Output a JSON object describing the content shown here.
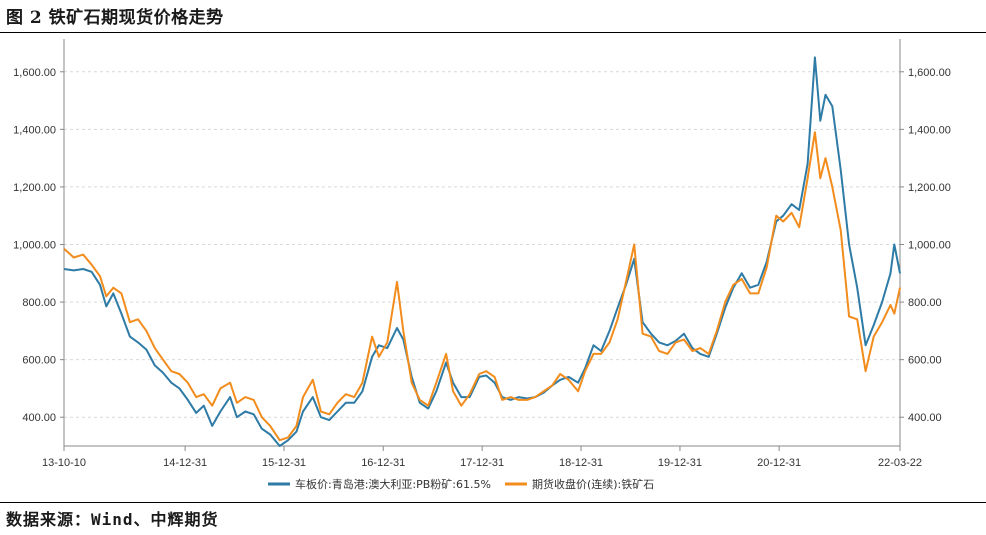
{
  "title": "图 2 铁矿石期现货价格走势",
  "source": "数据来源：Wind、中辉期货",
  "chart_data": {
    "type": "line",
    "title": "",
    "ylim": [
      300,
      1700
    ],
    "y_ticks": [
      400,
      600,
      800,
      1000,
      1200,
      1400,
      1600
    ],
    "y_tick_labels": [
      "400.00",
      "600.00",
      "800.00",
      "1,000.00",
      "1,200.00",
      "1,400.00",
      "1,600.00"
    ],
    "y2_tick_labels": [
      "400.00",
      "600.00",
      "800.00",
      "1,000.00",
      "1,200.00",
      "1,400.00",
      "1,600.00"
    ],
    "x_range": [
      "2013-10-10",
      "2022-03-22"
    ],
    "x_ticks": [
      "2013-10-10",
      "2014-12-31",
      "2015-12-31",
      "2016-12-31",
      "2017-12-31",
      "2018-12-31",
      "2019-12-31",
      "2020-12-31",
      "2022-03-22"
    ],
    "x_tick_labels": [
      "13-10-10",
      "14-12-31",
      "15-12-31",
      "16-12-31",
      "17-12-31",
      "18-12-31",
      "19-12-31",
      "20-12-31",
      "22-03-22"
    ],
    "grid": "horizontal dashed",
    "legend_position": "bottom",
    "series": [
      {
        "name": "车板价:青岛港:澳大利亚:PB粉矿:61.5%",
        "color": "#2e7ba6",
        "axis": "left",
        "points": [
          [
            "2013-10-10",
            915
          ],
          [
            "2013-11-15",
            910
          ],
          [
            "2013-12-20",
            915
          ],
          [
            "2014-01-20",
            905
          ],
          [
            "2014-02-20",
            860
          ],
          [
            "2014-03-15",
            785
          ],
          [
            "2014-04-10",
            830
          ],
          [
            "2014-05-10",
            760
          ],
          [
            "2014-06-10",
            680
          ],
          [
            "2014-07-10",
            660
          ],
          [
            "2014-08-10",
            635
          ],
          [
            "2014-09-10",
            580
          ],
          [
            "2014-10-10",
            555
          ],
          [
            "2014-11-10",
            520
          ],
          [
            "2014-12-10",
            500
          ],
          [
            "2015-01-10",
            460
          ],
          [
            "2015-02-10",
            415
          ],
          [
            "2015-03-10",
            440
          ],
          [
            "2015-04-10",
            370
          ],
          [
            "2015-05-10",
            420
          ],
          [
            "2015-06-15",
            470
          ],
          [
            "2015-07-10",
            400
          ],
          [
            "2015-08-10",
            420
          ],
          [
            "2015-09-10",
            410
          ],
          [
            "2015-10-10",
            360
          ],
          [
            "2015-11-10",
            340
          ],
          [
            "2015-12-15",
            300
          ],
          [
            "2016-01-15",
            320
          ],
          [
            "2016-02-15",
            350
          ],
          [
            "2016-03-10",
            420
          ],
          [
            "2016-04-15",
            470
          ],
          [
            "2016-05-15",
            400
          ],
          [
            "2016-06-15",
            390
          ],
          [
            "2016-07-15",
            420
          ],
          [
            "2016-08-15",
            450
          ],
          [
            "2016-09-15",
            450
          ],
          [
            "2016-10-15",
            490
          ],
          [
            "2016-11-20",
            610
          ],
          [
            "2016-12-15",
            650
          ],
          [
            "2017-01-15",
            640
          ],
          [
            "2017-02-20",
            710
          ],
          [
            "2017-03-15",
            670
          ],
          [
            "2017-04-15",
            540
          ],
          [
            "2017-05-15",
            450
          ],
          [
            "2017-06-15",
            430
          ],
          [
            "2017-07-15",
            490
          ],
          [
            "2017-08-20",
            590
          ],
          [
            "2017-09-15",
            520
          ],
          [
            "2017-10-15",
            470
          ],
          [
            "2017-11-15",
            470
          ],
          [
            "2017-12-20",
            540
          ],
          [
            "2018-01-15",
            545
          ],
          [
            "2018-02-15",
            520
          ],
          [
            "2018-03-15",
            470
          ],
          [
            "2018-04-15",
            460
          ],
          [
            "2018-05-15",
            470
          ],
          [
            "2018-06-15",
            465
          ],
          [
            "2018-07-15",
            470
          ],
          [
            "2018-08-15",
            485
          ],
          [
            "2018-09-15",
            510
          ],
          [
            "2018-10-15",
            530
          ],
          [
            "2018-11-15",
            540
          ],
          [
            "2018-12-20",
            520
          ],
          [
            "2019-01-15",
            570
          ],
          [
            "2019-02-15",
            650
          ],
          [
            "2019-03-15",
            630
          ],
          [
            "2019-04-15",
            700
          ],
          [
            "2019-05-15",
            780
          ],
          [
            "2019-06-15",
            860
          ],
          [
            "2019-07-15",
            950
          ],
          [
            "2019-08-15",
            730
          ],
          [
            "2019-09-15",
            690
          ],
          [
            "2019-10-15",
            660
          ],
          [
            "2019-11-15",
            650
          ],
          [
            "2019-12-15",
            665
          ],
          [
            "2020-01-15",
            690
          ],
          [
            "2020-02-15",
            640
          ],
          [
            "2020-03-15",
            620
          ],
          [
            "2020-04-15",
            610
          ],
          [
            "2020-05-15",
            690
          ],
          [
            "2020-06-15",
            780
          ],
          [
            "2020-07-15",
            850
          ],
          [
            "2020-08-15",
            900
          ],
          [
            "2020-09-15",
            850
          ],
          [
            "2020-10-15",
            860
          ],
          [
            "2020-11-15",
            940
          ],
          [
            "2020-12-20",
            1080
          ],
          [
            "2021-01-15",
            1100
          ],
          [
            "2021-02-15",
            1140
          ],
          [
            "2021-03-15",
            1120
          ],
          [
            "2021-04-15",
            1280
          ],
          [
            "2021-05-12",
            1650
          ],
          [
            "2021-06-01",
            1430
          ],
          [
            "2021-06-20",
            1520
          ],
          [
            "2021-07-15",
            1480
          ],
          [
            "2021-08-15",
            1260
          ],
          [
            "2021-09-15",
            1000
          ],
          [
            "2021-10-15",
            850
          ],
          [
            "2021-11-15",
            650
          ],
          [
            "2021-12-15",
            720
          ],
          [
            "2022-01-15",
            800
          ],
          [
            "2022-02-15",
            900
          ],
          [
            "2022-03-01",
            1000
          ],
          [
            "2022-03-22",
            900
          ]
        ]
      },
      {
        "name": "期货收盘价(连续):铁矿石",
        "color": "#f28c1c",
        "axis": "right",
        "points": [
          [
            "2013-10-10",
            985
          ],
          [
            "2013-11-15",
            955
          ],
          [
            "2013-12-20",
            965
          ],
          [
            "2014-01-20",
            930
          ],
          [
            "2014-02-20",
            890
          ],
          [
            "2014-03-15",
            820
          ],
          [
            "2014-04-10",
            850
          ],
          [
            "2014-05-10",
            830
          ],
          [
            "2014-06-10",
            730
          ],
          [
            "2014-07-10",
            740
          ],
          [
            "2014-08-10",
            700
          ],
          [
            "2014-09-10",
            640
          ],
          [
            "2014-10-10",
            600
          ],
          [
            "2014-11-10",
            560
          ],
          [
            "2014-12-10",
            550
          ],
          [
            "2015-01-10",
            520
          ],
          [
            "2015-02-10",
            470
          ],
          [
            "2015-03-10",
            480
          ],
          [
            "2015-04-10",
            440
          ],
          [
            "2015-05-10",
            500
          ],
          [
            "2015-06-15",
            520
          ],
          [
            "2015-07-10",
            450
          ],
          [
            "2015-08-10",
            470
          ],
          [
            "2015-09-10",
            460
          ],
          [
            "2015-10-10",
            400
          ],
          [
            "2015-11-10",
            370
          ],
          [
            "2015-12-15",
            320
          ],
          [
            "2016-01-15",
            330
          ],
          [
            "2016-02-15",
            370
          ],
          [
            "2016-03-10",
            470
          ],
          [
            "2016-04-15",
            530
          ],
          [
            "2016-05-15",
            420
          ],
          [
            "2016-06-15",
            410
          ],
          [
            "2016-07-15",
            450
          ],
          [
            "2016-08-15",
            480
          ],
          [
            "2016-09-15",
            470
          ],
          [
            "2016-10-15",
            520
          ],
          [
            "2016-11-20",
            680
          ],
          [
            "2016-12-15",
            610
          ],
          [
            "2017-01-15",
            660
          ],
          [
            "2017-02-20",
            870
          ],
          [
            "2017-03-15",
            700
          ],
          [
            "2017-04-15",
            520
          ],
          [
            "2017-05-15",
            460
          ],
          [
            "2017-06-15",
            440
          ],
          [
            "2017-07-15",
            520
          ],
          [
            "2017-08-20",
            620
          ],
          [
            "2017-09-15",
            490
          ],
          [
            "2017-10-15",
            440
          ],
          [
            "2017-11-15",
            480
          ],
          [
            "2017-12-20",
            550
          ],
          [
            "2018-01-15",
            560
          ],
          [
            "2018-02-15",
            540
          ],
          [
            "2018-03-15",
            460
          ],
          [
            "2018-04-15",
            470
          ],
          [
            "2018-05-15",
            460
          ],
          [
            "2018-06-15",
            460
          ],
          [
            "2018-07-15",
            470
          ],
          [
            "2018-08-15",
            490
          ],
          [
            "2018-09-15",
            510
          ],
          [
            "2018-10-15",
            550
          ],
          [
            "2018-11-15",
            530
          ],
          [
            "2018-12-20",
            490
          ],
          [
            "2019-01-15",
            560
          ],
          [
            "2019-02-15",
            620
          ],
          [
            "2019-03-15",
            620
          ],
          [
            "2019-04-15",
            660
          ],
          [
            "2019-05-15",
            740
          ],
          [
            "2019-06-15",
            870
          ],
          [
            "2019-07-15",
            1000
          ],
          [
            "2019-08-15",
            690
          ],
          [
            "2019-09-15",
            680
          ],
          [
            "2019-10-15",
            630
          ],
          [
            "2019-11-15",
            620
          ],
          [
            "2019-12-15",
            660
          ],
          [
            "2020-01-15",
            670
          ],
          [
            "2020-02-15",
            630
          ],
          [
            "2020-03-15",
            640
          ],
          [
            "2020-04-15",
            620
          ],
          [
            "2020-05-15",
            700
          ],
          [
            "2020-06-15",
            800
          ],
          [
            "2020-07-15",
            860
          ],
          [
            "2020-08-15",
            880
          ],
          [
            "2020-09-15",
            830
          ],
          [
            "2020-10-15",
            830
          ],
          [
            "2020-11-15",
            920
          ],
          [
            "2020-12-20",
            1100
          ],
          [
            "2021-01-15",
            1080
          ],
          [
            "2021-02-15",
            1110
          ],
          [
            "2021-03-15",
            1060
          ],
          [
            "2021-04-15",
            1230
          ],
          [
            "2021-05-12",
            1390
          ],
          [
            "2021-06-01",
            1230
          ],
          [
            "2021-06-20",
            1300
          ],
          [
            "2021-07-15",
            1200
          ],
          [
            "2021-08-15",
            1050
          ],
          [
            "2021-09-15",
            750
          ],
          [
            "2021-10-15",
            740
          ],
          [
            "2021-11-15",
            560
          ],
          [
            "2021-12-15",
            680
          ],
          [
            "2022-01-15",
            730
          ],
          [
            "2022-02-15",
            790
          ],
          [
            "2022-03-01",
            760
          ],
          [
            "2022-03-22",
            850
          ]
        ]
      }
    ]
  }
}
